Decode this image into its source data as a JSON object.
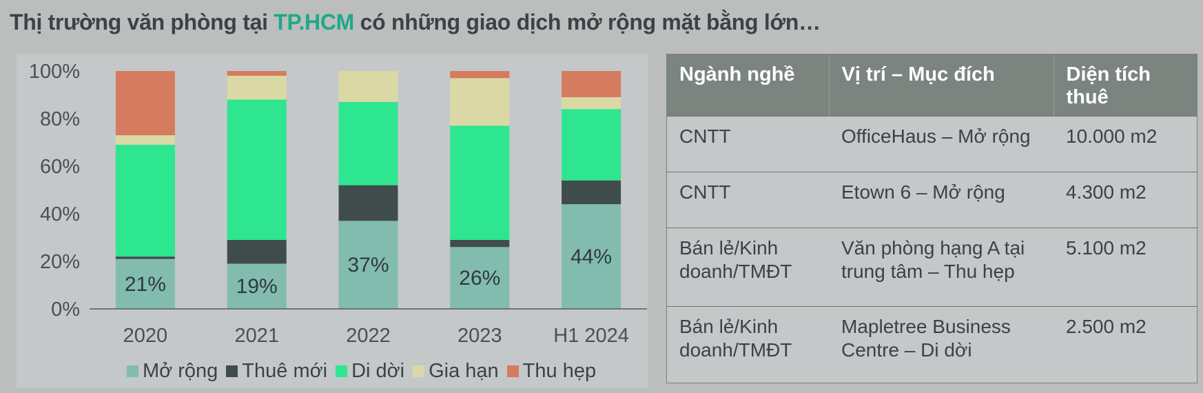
{
  "title": {
    "prefix": "Thị trường văn phòng tại ",
    "highlight": "TP.HCM",
    "suffix": " có những giao dịch mở rộng mặt bằng lớn…"
  },
  "colors": {
    "mo_rong": "#82bcaf",
    "thue_moi": "#404b4c",
    "di_doi": "#2ee68f",
    "gia_han": "#dad9a5",
    "thu_hep": "#d57b5f"
  },
  "chart_data": {
    "type": "bar",
    "stacked": true,
    "categories": [
      "2020",
      "2021",
      "2022",
      "2023",
      "H1 2024"
    ],
    "series": [
      {
        "name": "Mở rộng",
        "values": [
          21,
          19,
          37,
          26,
          44
        ]
      },
      {
        "name": "Thuê mới",
        "values": [
          1,
          10,
          15,
          3,
          10
        ]
      },
      {
        "name": "Di dời",
        "values": [
          47,
          59,
          35,
          48,
          30
        ]
      },
      {
        "name": "Gia hạn",
        "values": [
          4,
          10,
          13,
          20,
          5
        ]
      },
      {
        "name": "Thu hẹp",
        "values": [
          27,
          2,
          0,
          3,
          11
        ]
      }
    ],
    "data_labels": [
      "21%",
      "19%",
      "37%",
      "26%",
      "44%"
    ],
    "ylim": [
      0,
      100
    ],
    "yticks": [
      "0%",
      "20%",
      "40%",
      "60%",
      "80%",
      "100%"
    ],
    "grid": false,
    "legend_position": "bottom"
  },
  "table": {
    "headers": [
      "Ngành nghề",
      "Vị trí – Mục đích",
      "Diện tích thuê"
    ],
    "rows": [
      [
        "CNTT",
        "OfficeHaus – Mở rộng",
        "10.000 m2"
      ],
      [
        "CNTT",
        "Etown 6 – Mở rộng",
        "4.300 m2"
      ],
      [
        "Bán lẻ/Kinh doanh/TMĐT",
        "Văn phòng hạng A tại trung tâm – Thu hẹp",
        "5.100 m2"
      ],
      [
        "Bán lẻ/Kinh doanh/TMĐT",
        "Mapletree Business Centre – Di dời",
        "2.500 m2"
      ]
    ]
  }
}
